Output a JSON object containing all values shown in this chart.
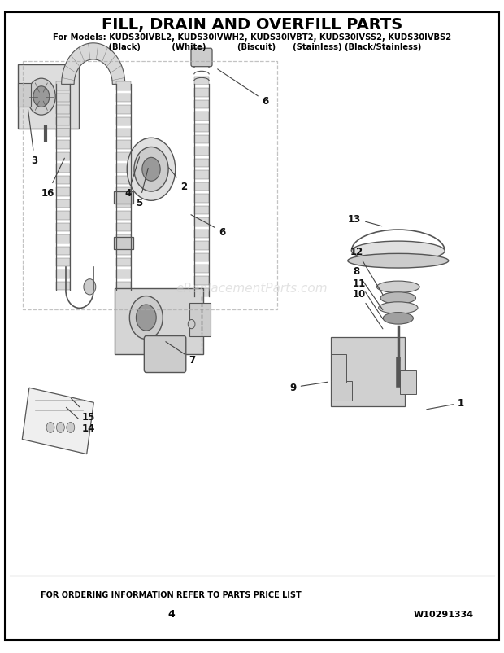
{
  "title": "FILL, DRAIN AND OVERFILL PARTS",
  "models_line": "For Models: KUDS30IVBL2, KUDS30IVWH2, KUDS30IVBT2, KUDS30IVSS2, KUDS30IVBS2",
  "colors_line": "         (Black)           (White)           (Biscuit)      (Stainless) (Black/Stainless)",
  "footer_left": "FOR ORDERING INFORMATION REFER TO PARTS PRICE LIST",
  "footer_page": "4",
  "footer_right": "W10291334",
  "bg_color": "#ffffff",
  "border_color": "#000000",
  "text_color": "#000000",
  "watermark": "eReplacementParts.com",
  "fig_width": 6.2,
  "fig_height": 8.03,
  "dpi": 100
}
